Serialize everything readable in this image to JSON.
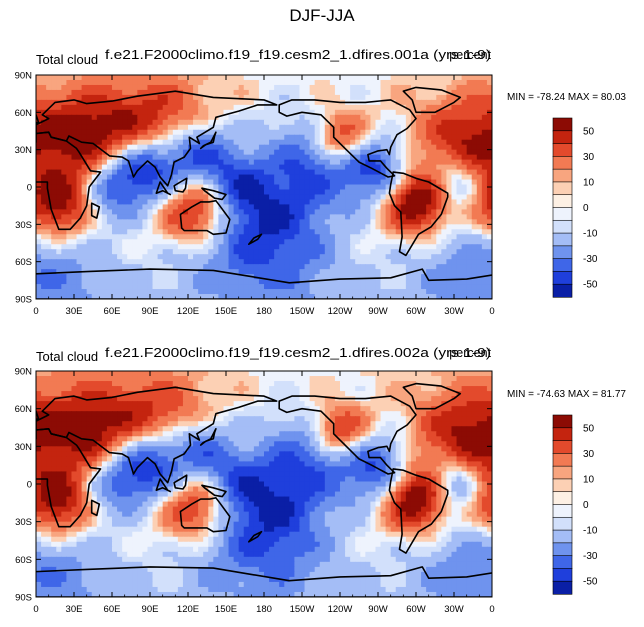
{
  "figure": {
    "title": "DJF-JJA"
  },
  "chart_data": [
    {
      "type": "heatmap",
      "left_title": "Total cloud",
      "center_title": "f.e21.F2000climo.f19_f19.cesm2_1.dfires.001a (yrs 1-9)",
      "right_title": "percent",
      "min_max": "MIN = -78.24 MAX =  80.03",
      "x_ticks": [
        "0",
        "30E",
        "60E",
        "90E",
        "120E",
        "150E",
        "180",
        "150W",
        "120W",
        "90W",
        "60W",
        "30W",
        "0"
      ],
      "y_ticks": [
        "90N",
        "60N",
        "30N",
        "0",
        "30S",
        "60S",
        "90S"
      ],
      "xlim": [
        0,
        360
      ],
      "ylim": [
        -90,
        90
      ],
      "colorbar_levels": [
        -60,
        -50,
        -40,
        -30,
        -20,
        -10,
        -5,
        0,
        5,
        10,
        20,
        30,
        40,
        50,
        60
      ],
      "colorbar_labels": [
        "50",
        "30",
        "10",
        "0",
        "-10",
        "-30",
        "-50"
      ],
      "anomalies": [
        {
          "lon": 15,
          "lat": -15,
          "amp": 55,
          "r": 20
        },
        {
          "lon": 40,
          "lat": 40,
          "amp": 45,
          "r": 25
        },
        {
          "lon": 95,
          "lat": 48,
          "amp": 40,
          "r": 25
        },
        {
          "lon": 125,
          "lat": -20,
          "amp": 45,
          "r": 18
        },
        {
          "lon": 300,
          "lat": -12,
          "amp": 60,
          "r": 18
        },
        {
          "lon": 240,
          "lat": 40,
          "amp": 45,
          "r": 15
        },
        {
          "lon": 340,
          "lat": 35,
          "amp": 40,
          "r": 25
        },
        {
          "lon": 90,
          "lat": 18,
          "amp": -55,
          "r": 20
        },
        {
          "lon": 130,
          "lat": 28,
          "amp": -40,
          "r": 18
        },
        {
          "lon": 60,
          "lat": 0,
          "amp": -35,
          "r": 18
        },
        {
          "lon": 220,
          "lat": 20,
          "amp": -35,
          "r": 28
        },
        {
          "lon": 270,
          "lat": 12,
          "amp": -40,
          "r": 18
        },
        {
          "lon": 180,
          "lat": -55,
          "amp": -35,
          "r": 40
        },
        {
          "lon": 0,
          "lat": -70,
          "amp": -30,
          "r": 40
        },
        {
          "lon": 180,
          "lat": -20,
          "amp": -22,
          "r": 25
        },
        {
          "lon": 330,
          "lat": 5,
          "amp": -30,
          "r": 15
        },
        {
          "lon": 160,
          "lat": 5,
          "amp": -25,
          "r": 15
        }
      ]
    },
    {
      "type": "heatmap",
      "left_title": "Total cloud",
      "center_title": "f.e21.F2000climo.f19_f19.cesm2_1.dfires.002a (yrs 1-9)",
      "right_title": "percent",
      "min_max": "MIN = -74.63 MAX =  81.77",
      "x_ticks": [
        "0",
        "30E",
        "60E",
        "90E",
        "120E",
        "150E",
        "180",
        "150W",
        "120W",
        "90W",
        "60W",
        "30W",
        "0"
      ],
      "y_ticks": [
        "90N",
        "60N",
        "30N",
        "0",
        "30S",
        "60S",
        "90S"
      ],
      "xlim": [
        0,
        360
      ],
      "ylim": [
        -90,
        90
      ],
      "colorbar_levels": [
        -60,
        -50,
        -40,
        -30,
        -20,
        -10,
        -5,
        0,
        5,
        10,
        20,
        30,
        40,
        50,
        60
      ],
      "colorbar_labels": [
        "50",
        "30",
        "10",
        "0",
        "-10",
        "-30",
        "-50"
      ],
      "anomalies": [
        {
          "lon": 15,
          "lat": -15,
          "amp": 55,
          "r": 20
        },
        {
          "lon": 42,
          "lat": 42,
          "amp": 45,
          "r": 25
        },
        {
          "lon": 98,
          "lat": 48,
          "amp": 35,
          "r": 25
        },
        {
          "lon": 125,
          "lat": -20,
          "amp": 40,
          "r": 18
        },
        {
          "lon": 300,
          "lat": -12,
          "amp": 60,
          "r": 18
        },
        {
          "lon": 240,
          "lat": 42,
          "amp": 45,
          "r": 15
        },
        {
          "lon": 340,
          "lat": 38,
          "amp": 45,
          "r": 25
        },
        {
          "lon": 90,
          "lat": 18,
          "amp": -55,
          "r": 20
        },
        {
          "lon": 130,
          "lat": 28,
          "amp": -35,
          "r": 18
        },
        {
          "lon": 60,
          "lat": 0,
          "amp": -30,
          "r": 18
        },
        {
          "lon": 215,
          "lat": 18,
          "amp": -35,
          "r": 28
        },
        {
          "lon": 270,
          "lat": 12,
          "amp": -40,
          "r": 18
        },
        {
          "lon": 180,
          "lat": -55,
          "amp": -30,
          "r": 40
        },
        {
          "lon": 0,
          "lat": -70,
          "amp": -30,
          "r": 40
        },
        {
          "lon": 180,
          "lat": -20,
          "amp": -25,
          "r": 25
        },
        {
          "lon": 330,
          "lat": 2,
          "amp": -35,
          "r": 15
        },
        {
          "lon": 160,
          "lat": 5,
          "amp": -20,
          "r": 15
        }
      ]
    }
  ],
  "colors": {
    "scale": [
      "#0a1fa6",
      "#1f3fdc",
      "#3f66e8",
      "#6f93ee",
      "#a4bdf6",
      "#d2e0fb",
      "#eef3fd",
      "#fdf0e4",
      "#fcd0b4",
      "#f8a57f",
      "#f27a53",
      "#e34a2c",
      "#c4240f",
      "#8c0b04"
    ]
  },
  "continents": [
    [
      [
        0,
        43
      ],
      [
        10,
        44
      ],
      [
        12,
        40
      ],
      [
        24,
        37
      ],
      [
        32,
        31
      ],
      [
        34,
        28
      ],
      [
        43,
        13
      ],
      [
        51,
        12
      ],
      [
        42,
        0
      ],
      [
        40,
        -15
      ],
      [
        35,
        -25
      ],
      [
        27,
        -34
      ],
      [
        18,
        -34
      ],
      [
        12,
        -18
      ],
      [
        9,
        -1
      ],
      [
        9,
        4
      ],
      [
        -8,
        4
      ],
      [
        -17,
        14
      ],
      [
        -16,
        21
      ],
      [
        -6,
        35
      ],
      [
        0,
        36
      ]
    ],
    [
      [
        0,
        43
      ],
      [
        10,
        44
      ],
      [
        12,
        40
      ],
      [
        24,
        37
      ],
      [
        26,
        41
      ],
      [
        36,
        36
      ],
      [
        45,
        35
      ],
      [
        58,
        25
      ],
      [
        68,
        24
      ],
      [
        73,
        21
      ],
      [
        77,
        8
      ],
      [
        80,
        13
      ],
      [
        88,
        21
      ],
      [
        94,
        16
      ],
      [
        98,
        8
      ],
      [
        104,
        1
      ],
      [
        107,
        10
      ],
      [
        109,
        20
      ],
      [
        117,
        24
      ],
      [
        122,
        31
      ],
      [
        121,
        40
      ],
      [
        129,
        35
      ],
      [
        127,
        40
      ],
      [
        140,
        48
      ],
      [
        142,
        56
      ],
      [
        160,
        61
      ],
      [
        175,
        66
      ],
      [
        190,
        66
      ],
      [
        180,
        70
      ],
      [
        140,
        72
      ],
      [
        110,
        77
      ],
      [
        80,
        73
      ],
      [
        60,
        69
      ],
      [
        40,
        67
      ],
      [
        30,
        70
      ],
      [
        15,
        68
      ],
      [
        5,
        58
      ],
      [
        10,
        55
      ],
      [
        0,
        50
      ]
    ],
    [
      [
        114,
        -22
      ],
      [
        123,
        -16
      ],
      [
        130,
        -12
      ],
      [
        137,
        -12
      ],
      [
        142,
        -11
      ],
      [
        145,
        -15
      ],
      [
        153,
        -26
      ],
      [
        150,
        -37
      ],
      [
        140,
        -38
      ],
      [
        135,
        -35
      ],
      [
        117,
        -35
      ],
      [
        115,
        -33
      ]
    ],
    [
      [
        192,
        66
      ],
      [
        202,
        70
      ],
      [
        220,
        70
      ],
      [
        240,
        68
      ],
      [
        260,
        68
      ],
      [
        280,
        70
      ],
      [
        295,
        62
      ],
      [
        300,
        55
      ],
      [
        293,
        47
      ],
      [
        285,
        42
      ],
      [
        280,
        32
      ],
      [
        279,
        26
      ],
      [
        277,
        30
      ],
      [
        270,
        29
      ],
      [
        262,
        26
      ],
      [
        263,
        21
      ],
      [
        272,
        21
      ],
      [
        277,
        15
      ],
      [
        283,
        9
      ],
      [
        278,
        8
      ],
      [
        265,
        15
      ],
      [
        255,
        20
      ],
      [
        245,
        30
      ],
      [
        235,
        40
      ],
      [
        235,
        48
      ],
      [
        225,
        58
      ],
      [
        210,
        60
      ],
      [
        198,
        57
      ],
      [
        192,
        60
      ]
    ],
    [
      [
        282,
        12
      ],
      [
        290,
        11
      ],
      [
        300,
        7
      ],
      [
        310,
        4
      ],
      [
        325,
        -5
      ],
      [
        325,
        -8
      ],
      [
        320,
        -22
      ],
      [
        312,
        -32
      ],
      [
        302,
        -38
      ],
      [
        292,
        -55
      ],
      [
        287,
        -52
      ],
      [
        289,
        -40
      ],
      [
        288,
        -20
      ],
      [
        283,
        -15
      ],
      [
        279,
        -5
      ],
      [
        280,
        2
      ]
    ],
    [
      [
        -5,
        -70
      ],
      [
        40,
        -68
      ],
      [
        90,
        -66
      ],
      [
        140,
        -67
      ],
      [
        170,
        -72
      ],
      [
        200,
        -77
      ],
      [
        240,
        -74
      ],
      [
        280,
        -73
      ],
      [
        305,
        -66
      ],
      [
        310,
        -75
      ],
      [
        340,
        -74
      ],
      [
        365,
        -70
      ],
      [
        365,
        -90
      ],
      [
        -5,
        -90
      ]
    ],
    [
      [
        300,
        60
      ],
      [
        315,
        60
      ],
      [
        330,
        68
      ],
      [
        335,
        72
      ],
      [
        320,
        78
      ],
      [
        300,
        80
      ],
      [
        290,
        77
      ],
      [
        297,
        70
      ]
    ],
    [
      [
        95,
        -5
      ],
      [
        100,
        -3
      ],
      [
        106,
        -6
      ],
      [
        104,
        -5
      ],
      [
        98,
        4
      ]
    ],
    [
      [
        109,
        1
      ],
      [
        114,
        4
      ],
      [
        119,
        7
      ],
      [
        118,
        -1
      ],
      [
        116,
        -4
      ],
      [
        110,
        -3
      ]
    ],
    [
      [
        131,
        -1
      ],
      [
        140,
        -3
      ],
      [
        150,
        -6
      ],
      [
        147,
        -10
      ],
      [
        141,
        -9
      ],
      [
        133,
        -3
      ]
    ],
    [
      [
        130,
        31
      ],
      [
        134,
        34
      ],
      [
        140,
        36
      ],
      [
        141,
        41
      ],
      [
        142,
        44
      ],
      [
        138,
        36
      ],
      [
        132,
        33
      ]
    ],
    [
      [
        172,
        -41
      ],
      [
        178,
        -38
      ],
      [
        175,
        -42
      ],
      [
        168,
        -46
      ]
    ],
    [
      [
        -5,
        50
      ],
      [
        -5,
        58
      ],
      [
        0,
        58
      ],
      [
        2,
        52
      ]
    ],
    [
      [
        44,
        -13
      ],
      [
        50,
        -16
      ],
      [
        48,
        -25
      ],
      [
        44,
        -23
      ]
    ]
  ]
}
